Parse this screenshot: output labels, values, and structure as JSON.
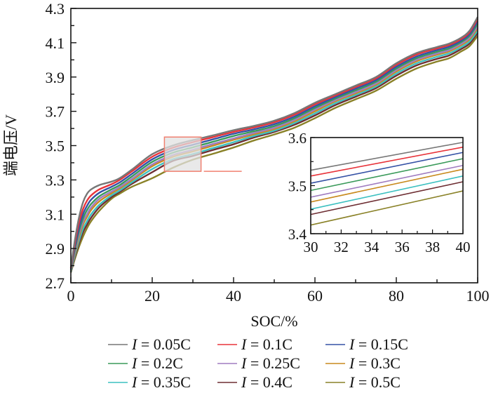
{
  "chart_data": {
    "type": "line",
    "title": "",
    "xlabel": "SOC/%",
    "ylabel": "端电压/V",
    "xlim": [
      0,
      100
    ],
    "ylim": [
      2.7,
      4.3
    ],
    "xticks": [
      "0",
      "20",
      "40",
      "60",
      "80",
      "100"
    ],
    "yticks": [
      "2.7",
      "2.9",
      "3.1",
      "3.3",
      "3.5",
      "3.7",
      "3.9",
      "4.1",
      "4.3"
    ],
    "grid": false,
    "legend_position": "bottom",
    "x": [
      0,
      1,
      2,
      3,
      4,
      5,
      7,
      10,
      12,
      15,
      20,
      25,
      30,
      35,
      40,
      45,
      50,
      55,
      60,
      65,
      70,
      75,
      80,
      85,
      90,
      93,
      96,
      98,
      100
    ],
    "series": [
      {
        "name": "I = 0.05C",
        "prefix": "I",
        "label": " = 0.05C",
        "color": "#777777",
        "values": [
          2.79,
          2.95,
          3.08,
          3.17,
          3.22,
          3.245,
          3.27,
          3.29,
          3.31,
          3.36,
          3.45,
          3.5,
          3.532,
          3.56,
          3.59,
          3.615,
          3.645,
          3.69,
          3.75,
          3.8,
          3.85,
          3.9,
          3.98,
          4.04,
          4.075,
          4.095,
          4.13,
          4.17,
          4.25
        ]
      },
      {
        "name": "I = 0.1C",
        "prefix": "I",
        "label": " = 0.1C",
        "color": "#e8333a",
        "values": [
          2.785,
          2.93,
          3.05,
          3.13,
          3.18,
          3.21,
          3.245,
          3.275,
          3.3,
          3.35,
          3.435,
          3.487,
          3.52,
          3.55,
          3.58,
          3.606,
          3.636,
          3.681,
          3.741,
          3.792,
          3.842,
          3.892,
          3.971,
          4.031,
          4.067,
          4.087,
          4.122,
          4.161,
          4.24
        ]
      },
      {
        "name": "I = 0.15C",
        "prefix": "I",
        "label": " = 0.15C",
        "color": "#3552a5",
        "values": [
          2.78,
          2.91,
          3.02,
          3.1,
          3.15,
          3.185,
          3.225,
          3.26,
          3.285,
          3.335,
          3.42,
          3.473,
          3.505,
          3.537,
          3.569,
          3.595,
          3.625,
          3.67,
          3.73,
          3.783,
          3.832,
          3.882,
          3.96,
          4.02,
          4.057,
          4.077,
          4.113,
          4.15,
          4.225
        ]
      },
      {
        "name": "I = 0.2C",
        "prefix": "I",
        "label": " = 0.2C",
        "color": "#3a9a5a",
        "values": [
          2.775,
          2.895,
          3.0,
          3.075,
          3.125,
          3.16,
          3.205,
          3.245,
          3.27,
          3.32,
          3.405,
          3.458,
          3.49,
          3.523,
          3.556,
          3.584,
          3.614,
          3.66,
          3.72,
          3.774,
          3.822,
          3.872,
          3.95,
          4.01,
          4.047,
          4.067,
          4.104,
          4.14,
          4.21
        ]
      },
      {
        "name": "I = 0.25C",
        "prefix": "I",
        "label": " = 0.25C",
        "color": "#a07cc0",
        "values": [
          2.772,
          2.88,
          2.98,
          3.055,
          3.1,
          3.14,
          3.19,
          3.232,
          3.258,
          3.306,
          3.39,
          3.444,
          3.476,
          3.51,
          3.542,
          3.574,
          3.604,
          3.65,
          3.71,
          3.765,
          3.812,
          3.862,
          3.94,
          4.0,
          4.037,
          4.057,
          4.094,
          4.128,
          4.195
        ]
      },
      {
        "name": "I = 0.3C",
        "prefix": "I",
        "label": " = 0.3C",
        "color": "#c88a1e",
        "values": [
          2.77,
          2.87,
          2.965,
          3.04,
          3.085,
          3.125,
          3.175,
          3.222,
          3.25,
          3.298,
          3.38,
          3.434,
          3.466,
          3.5,
          3.534,
          3.566,
          3.597,
          3.642,
          3.7,
          3.758,
          3.805,
          3.855,
          3.932,
          3.992,
          4.03,
          4.05,
          4.087,
          4.12,
          4.185
        ]
      },
      {
        "name": "I = 0.35C",
        "prefix": "I",
        "label": " = 0.35C",
        "color": "#3cc0c0",
        "values": [
          2.765,
          2.86,
          2.945,
          3.015,
          3.06,
          3.1,
          3.155,
          3.21,
          3.238,
          3.286,
          3.363,
          3.42,
          3.451,
          3.486,
          3.52,
          3.556,
          3.587,
          3.632,
          3.688,
          3.747,
          3.795,
          3.845,
          3.92,
          3.98,
          4.018,
          4.038,
          4.075,
          4.107,
          4.17
        ]
      },
      {
        "name": "I = 0.4C",
        "prefix": "I",
        "label": " = 0.4C",
        "color": "#6e2e33",
        "values": [
          2.762,
          2.85,
          2.93,
          2.995,
          3.04,
          3.08,
          3.14,
          3.2,
          3.23,
          3.277,
          3.345,
          3.41,
          3.44,
          3.475,
          3.508,
          3.547,
          3.58,
          3.622,
          3.676,
          3.736,
          3.785,
          3.835,
          3.908,
          3.968,
          4.006,
          4.026,
          4.064,
          4.095,
          4.158
        ]
      },
      {
        "name": "I = 0.5C",
        "prefix": "I",
        "label": " = 0.5C",
        "color": "#8a8228",
        "values": [
          2.76,
          2.84,
          2.91,
          2.97,
          3.02,
          3.06,
          3.12,
          3.19,
          3.22,
          3.26,
          3.31,
          3.37,
          3.418,
          3.453,
          3.489,
          3.53,
          3.565,
          3.605,
          3.66,
          3.72,
          3.77,
          3.82,
          3.89,
          3.95,
          3.99,
          4.01,
          4.05,
          4.08,
          4.14
        ]
      }
    ],
    "inset": {
      "xlim": [
        30,
        40
      ],
      "ylim": [
        3.4,
        3.6
      ],
      "xticks": [
        "30",
        "32",
        "34",
        "36",
        "38",
        "40"
      ],
      "yticks": [
        "3.4",
        "3.5",
        "3.6"
      ],
      "x": [
        30,
        40
      ],
      "series_values": [
        [
          3.532,
          3.59
        ],
        [
          3.52,
          3.58
        ],
        [
          3.505,
          3.569
        ],
        [
          3.49,
          3.556
        ],
        [
          3.476,
          3.542
        ],
        [
          3.466,
          3.534
        ],
        [
          3.451,
          3.52
        ],
        [
          3.44,
          3.508
        ],
        [
          3.418,
          3.489
        ]
      ]
    },
    "zoom_region": {
      "x_range": [
        23,
        32
      ],
      "y_range": [
        3.35,
        3.55
      ],
      "color": "#f08070",
      "fill": "#e2e2e2"
    }
  }
}
